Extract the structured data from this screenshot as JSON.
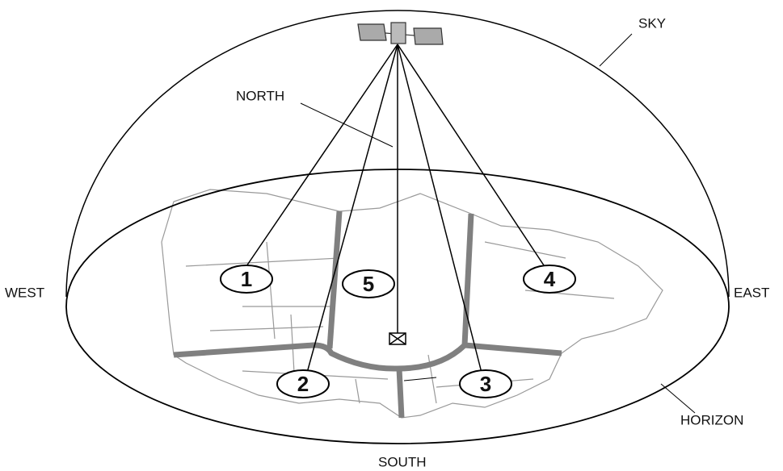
{
  "labels": {
    "sky": "SKY",
    "north": "NORTH",
    "west": "WEST",
    "east": "EAST",
    "horizon": "HORIZON",
    "south": "SOUTH"
  },
  "markers": [
    "1",
    "2",
    "3",
    "4",
    "5"
  ]
}
